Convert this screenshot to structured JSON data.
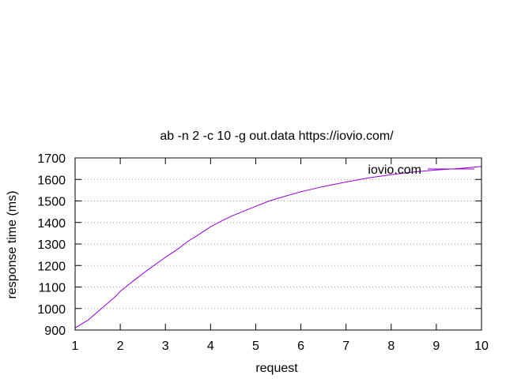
{
  "chart_data": {
    "type": "line",
    "title": "ab -n 2 -c 10 -g out.data https://iovio.com/",
    "xlabel": "request",
    "ylabel": "response time (ms)",
    "xlim": [
      1,
      10
    ],
    "ylim": [
      900,
      1700
    ],
    "xticks": [
      "1",
      "2",
      "3",
      "4",
      "5",
      "6",
      "7",
      "8",
      "9",
      "10"
    ],
    "yticks": [
      "900",
      "1000",
      "1100",
      "1200",
      "1300",
      "1400",
      "1500",
      "1600",
      "1700"
    ],
    "grid": "horizontal dotted",
    "legend_position": "top-right",
    "series": [
      {
        "name": "iovio.com",
        "color": "#9400d3",
        "x": [
          1,
          1.3,
          1.6,
          1.9,
          2.0,
          2.3,
          2.6,
          3.0,
          3.3,
          3.5,
          3.7,
          4.0,
          4.3,
          4.5,
          5.0,
          5.3,
          5.5,
          6.0,
          6.5,
          7.0,
          7.5,
          8.0,
          8.5,
          9.0,
          9.5,
          10.0
        ],
        "y": [
          910,
          948,
          1003,
          1057,
          1080,
          1130,
          1178,
          1238,
          1280,
          1313,
          1338,
          1380,
          1413,
          1433,
          1475,
          1500,
          1513,
          1543,
          1567,
          1588,
          1607,
          1622,
          1635,
          1644,
          1651,
          1660
        ]
      }
    ],
    "colors": {
      "line": "#9400d3",
      "axis": "#000000",
      "grid": "#a0a0a0"
    }
  }
}
